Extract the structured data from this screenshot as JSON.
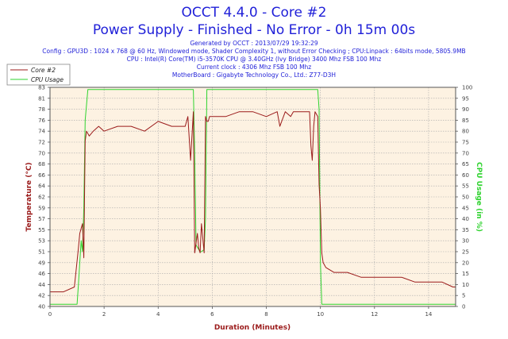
{
  "header": {
    "title": "OCCT 4.4.0 - Core #2",
    "subtitle": "Power Supply - Finished - No Error - 0h 15m 00s",
    "info_lines": [
      "Generated by OCCT : 2013/07/29 19:32:29",
      "Config : GPU3D : 1024 x 768 @ 60 Hz, Windowed mode, Shader Complexity 1, without Error Checking ; CPU:Linpack : 64bits mode, 5805.9MB",
      "CPU : Intel(R) Core(TM) i5-3570K CPU @ 3.40GHz (Ivy Bridge) 3400 Mhz FSB 100 Mhz",
      "Current clock : 4306 Mhz FSB 100 Mhz",
      "MotherBoard : Gigabyte Technology Co., Ltd.: Z77-D3H"
    ]
  },
  "colors": {
    "title": "#1f1fd8",
    "info": "#1f1fd8",
    "temperature": "#9b1b1b",
    "cpu_usage": "#2fd32f",
    "plot_background": "#fdf2e2",
    "grid": "#a9a9a9",
    "axis_text": "#444444"
  },
  "chart_data": {
    "type": "line",
    "xlabel": "Duration (Minutes)",
    "ylabel_left": "Temperature (°C)",
    "ylabel_right": "CPU Usage (in %)",
    "xlim": [
      0,
      15
    ],
    "ylim_left": [
      40,
      85
    ],
    "ylim_right": [
      0,
      100
    ],
    "x_ticks": [
      0,
      2,
      4,
      6,
      8,
      10,
      12,
      14
    ],
    "y_left_ticks": [
      40,
      42,
      44,
      46,
      49,
      51,
      53,
      55,
      57,
      59,
      62,
      64,
      66,
      68,
      70,
      72,
      74,
      76,
      78,
      81,
      83
    ],
    "y_right_ticks": [
      0,
      5,
      10,
      15,
      20,
      25,
      30,
      35,
      40,
      45,
      50,
      55,
      60,
      65,
      70,
      75,
      80,
      85,
      90,
      95,
      100
    ],
    "grid": true,
    "legend_position": "top-left",
    "series": [
      {
        "name": "Core #2",
        "axis": "left",
        "x": [
          0.0,
          0.5,
          0.9,
          1.05,
          1.1,
          1.15,
          1.2,
          1.25,
          1.3,
          1.35,
          1.45,
          1.6,
          1.8,
          2.0,
          2.5,
          3.0,
          3.5,
          4.0,
          4.5,
          5.0,
          5.1,
          5.2,
          5.3,
          5.35,
          5.45,
          5.5,
          5.55,
          5.6,
          5.7,
          5.75,
          5.8,
          5.85,
          5.9,
          6.2,
          6.5,
          7.0,
          7.5,
          8.0,
          8.4,
          8.5,
          8.7,
          8.9,
          9.0,
          9.3,
          9.6,
          9.65,
          9.7,
          9.75,
          9.8,
          9.9,
          9.95,
          10.0,
          10.05,
          10.1,
          10.2,
          10.5,
          11.0,
          11.5,
          12.0,
          12.5,
          13.0,
          13.5,
          14.0,
          14.5,
          14.9,
          15.0
        ],
        "y": [
          43,
          43,
          44,
          52,
          55,
          56,
          57,
          50,
          74,
          76,
          75,
          76,
          77,
          76,
          77,
          77,
          76,
          78,
          77,
          77,
          79,
          70,
          80,
          51,
          55,
          52,
          51,
          57,
          51,
          79,
          78,
          78,
          79,
          79,
          79,
          80,
          80,
          79,
          80,
          77,
          80,
          79,
          80,
          80,
          80,
          73,
          70,
          77,
          80,
          79,
          65,
          60,
          51,
          49,
          48,
          47,
          47,
          46,
          46,
          46,
          46,
          45,
          45,
          45,
          44,
          44
        ]
      },
      {
        "name": "CPU Usage",
        "axis": "right",
        "x": [
          0.0,
          1.0,
          1.05,
          1.1,
          1.15,
          1.2,
          1.25,
          1.3,
          1.4,
          2.0,
          3.0,
          4.0,
          5.0,
          5.3,
          5.35,
          5.4,
          5.5,
          5.55,
          5.6,
          5.7,
          5.75,
          5.8,
          6.0,
          7.0,
          8.0,
          9.0,
          9.9,
          9.95,
          10.0,
          10.05,
          10.1,
          12.0,
          14.0,
          15.0
        ],
        "y": [
          1,
          1,
          10,
          20,
          30,
          25,
          45,
          85,
          99,
          99,
          99,
          99,
          99,
          99,
          70,
          28,
          26,
          25,
          25,
          26,
          40,
          99,
          99,
          99,
          99,
          99,
          99,
          90,
          20,
          1,
          1,
          1,
          1,
          1
        ]
      }
    ]
  }
}
